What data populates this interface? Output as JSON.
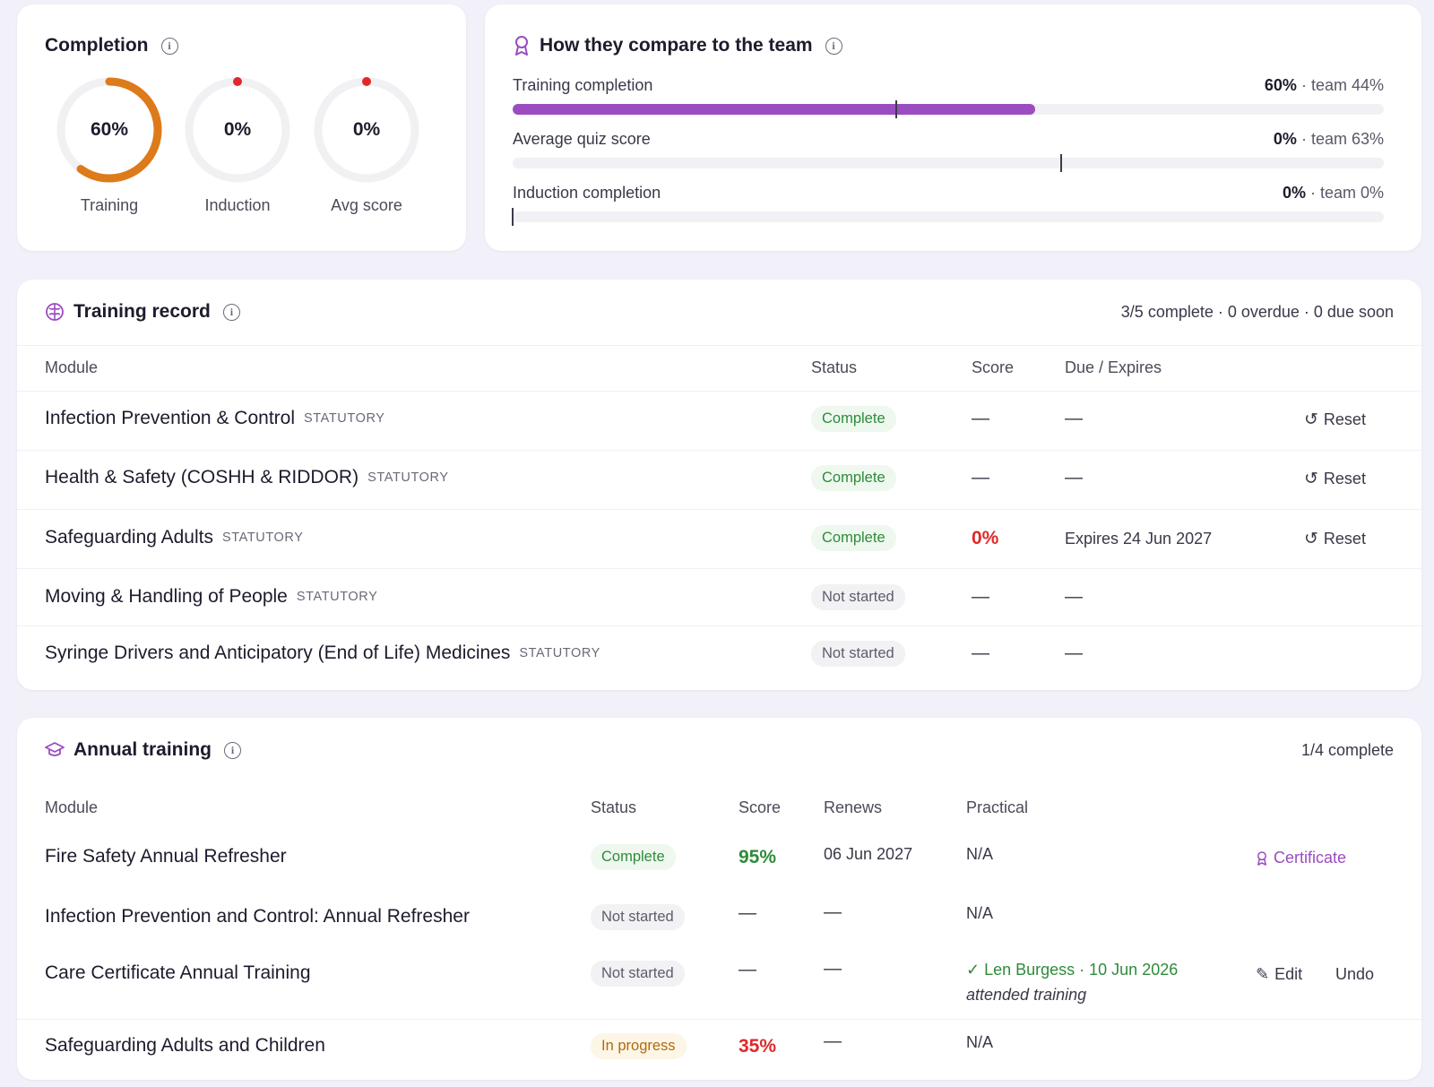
{
  "completion": {
    "title": "Completion",
    "rings": [
      {
        "value_text": "60%",
        "label": "Training",
        "progress": 0.6,
        "color": "#dd7a1a"
      },
      {
        "value_text": "0%",
        "label": "Induction",
        "progress": 0,
        "color": "#e0282a"
      },
      {
        "value_text": "0%",
        "label": "Avg score",
        "progress": 0,
        "color": "#e0282a"
      }
    ]
  },
  "compare": {
    "title": "How they compare to the team",
    "rows": [
      {
        "label": "Training completion",
        "value": "60%",
        "team": "· team 44%",
        "value_pct": 60,
        "team_pct": 44
      },
      {
        "label": "Average quiz score",
        "value": "0%",
        "team": "· team 63%",
        "value_pct": 0,
        "team_pct": 63
      },
      {
        "label": "Induction completion",
        "value": "0%",
        "team": "· team 0%",
        "value_pct": 0,
        "team_pct": 0
      }
    ],
    "bar_color": "#9a4cc0"
  },
  "training_record": {
    "title": "Training record",
    "summary": "3/5 complete · 0 overdue · 0 due soon",
    "headers": {
      "module": "Module",
      "status": "Status",
      "score": "Score",
      "due": "Due / Expires"
    },
    "rows": [
      {
        "module": "Infection Prevention & Control",
        "tag": "STATUTORY",
        "status": "Complete",
        "score": "—",
        "due": "—",
        "action": "Reset"
      },
      {
        "module": "Health & Safety (COSHH & RIDDOR)",
        "tag": "STATUTORY",
        "status": "Complete",
        "score": "—",
        "due": "—",
        "action": "Reset"
      },
      {
        "module": "Safeguarding Adults",
        "tag": "STATUTORY",
        "status": "Complete",
        "score": "0%",
        "due": "Expires 24 Jun 2027",
        "action": "Reset"
      },
      {
        "module": "Moving & Handling of People",
        "tag": "STATUTORY",
        "status": "Not started",
        "score": "—",
        "due": "—"
      },
      {
        "module": "Syringe Drivers and Anticipatory (End of Life) Medicines",
        "tag": "STATUTORY",
        "status": "Not started",
        "score": "—",
        "due": "—"
      }
    ]
  },
  "annual_training": {
    "title": "Annual training",
    "summary": "1/4 complete",
    "headers": {
      "module": "Module",
      "status": "Status",
      "score": "Score",
      "renews": "Renews",
      "practical": "Practical"
    },
    "rows": [
      {
        "module": "Fire Safety Annual Refresher",
        "status": "Complete",
        "score": "95%",
        "renews": "06 Jun 2027",
        "practical": "N/A",
        "action": "Certificate"
      },
      {
        "module": "Infection Prevention and Control: Annual Refresher",
        "status": "Not started",
        "score": "—",
        "renews": "—",
        "practical": "N/A"
      },
      {
        "module": "Care Certificate Annual Training",
        "status": "Not started",
        "score": "—",
        "renews": "—",
        "practical_signed": "✓ Len Burgess · 10 Jun 2026",
        "practical_note": "attended training",
        "edit": "Edit",
        "undo": "Undo"
      },
      {
        "module": "Safeguarding Adults and Children",
        "status": "In progress",
        "score": "35%",
        "renews": "—",
        "practical": "N/A"
      }
    ]
  },
  "colors": {
    "accent": "#9a4cc0",
    "green": "#2e8b3a",
    "red": "#e0282a",
    "orange": "#dd7a1a"
  }
}
